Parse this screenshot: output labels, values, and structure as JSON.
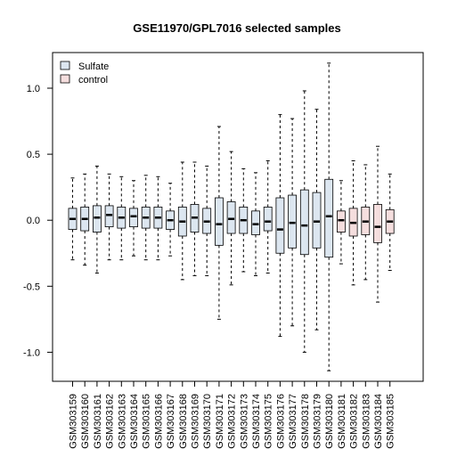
{
  "chart_data": {
    "type": "boxplot",
    "title": "GSE11970/GPL7016 selected samples",
    "xlabel": "",
    "ylabel": "",
    "ylim": [
      -1.22,
      1.27
    ],
    "yticks": [
      -1.0,
      -0.5,
      0.0,
      0.5,
      1.0
    ],
    "ytick_labels": [
      "-1.0",
      "-0.5",
      "0.0",
      "0.5",
      "1.0"
    ],
    "grid": false,
    "legend_position": "top-left",
    "legend": [
      {
        "name": "Sulfate",
        "color": "#dce6f0"
      },
      {
        "name": "control",
        "color": "#f5dede"
      }
    ],
    "categories": [
      "GSM303159",
      "GSM303160",
      "GSM303161",
      "GSM303162",
      "GSM303163",
      "GSM303164",
      "GSM303165",
      "GSM303166",
      "GSM303167",
      "GSM303168",
      "GSM303169",
      "GSM303170",
      "GSM303171",
      "GSM303172",
      "GSM303173",
      "GSM303174",
      "GSM303175",
      "GSM303176",
      "GSM303177",
      "GSM303178",
      "GSM303179",
      "GSM303180",
      "GSM303181",
      "GSM303182",
      "GSM303183",
      "GSM303184",
      "GSM303185"
    ],
    "series": [
      {
        "name": "Sulfate",
        "color": "#dce6f0",
        "boxes": [
          {
            "whisker_low": -0.3,
            "q1": -0.07,
            "median": 0.01,
            "q3": 0.09,
            "whisker_high": 0.32
          },
          {
            "whisker_low": -0.34,
            "q1": -0.08,
            "median": 0.01,
            "q3": 0.1,
            "whisker_high": 0.35
          },
          {
            "whisker_low": -0.4,
            "q1": -0.09,
            "median": 0.02,
            "q3": 0.11,
            "whisker_high": 0.41
          },
          {
            "whisker_low": -0.3,
            "q1": -0.05,
            "median": 0.04,
            "q3": 0.11,
            "whisker_high": 0.35
          },
          {
            "whisker_low": -0.3,
            "q1": -0.06,
            "median": 0.02,
            "q3": 0.1,
            "whisker_high": 0.33
          },
          {
            "whisker_low": -0.27,
            "q1": -0.05,
            "median": 0.03,
            "q3": 0.09,
            "whisker_high": 0.3
          },
          {
            "whisker_low": -0.3,
            "q1": -0.06,
            "median": 0.02,
            "q3": 0.1,
            "whisker_high": 0.34
          },
          {
            "whisker_low": -0.3,
            "q1": -0.06,
            "median": 0.02,
            "q3": 0.1,
            "whisker_high": 0.33
          },
          {
            "whisker_low": -0.27,
            "q1": -0.07,
            "median": 0.0,
            "q3": 0.07,
            "whisker_high": 0.28
          },
          {
            "whisker_low": -0.45,
            "q1": -0.12,
            "median": -0.01,
            "q3": 0.1,
            "whisker_high": 0.44
          },
          {
            "whisker_low": -0.42,
            "q1": -0.09,
            "median": 0.02,
            "q3": 0.12,
            "whisker_high": 0.44
          },
          {
            "whisker_low": -0.42,
            "q1": -0.1,
            "median": -0.01,
            "q3": 0.09,
            "whisker_high": 0.41
          },
          {
            "whisker_low": -0.75,
            "q1": -0.19,
            "median": -0.03,
            "q3": 0.17,
            "whisker_high": 0.71
          },
          {
            "whisker_low": -0.49,
            "q1": -0.1,
            "median": 0.01,
            "q3": 0.14,
            "whisker_high": 0.52
          },
          {
            "whisker_low": -0.39,
            "q1": -0.1,
            "median": 0.0,
            "q3": 0.1,
            "whisker_high": 0.39
          },
          {
            "whisker_low": -0.42,
            "q1": -0.11,
            "median": -0.03,
            "q3": 0.07,
            "whisker_high": 0.36
          },
          {
            "whisker_low": -0.4,
            "q1": -0.08,
            "median": -0.01,
            "q3": 0.1,
            "whisker_high": 0.45
          },
          {
            "whisker_low": -0.88,
            "q1": -0.25,
            "median": -0.07,
            "q3": 0.17,
            "whisker_high": 0.8
          },
          {
            "whisker_low": -0.8,
            "q1": -0.21,
            "median": -0.02,
            "q3": 0.19,
            "whisker_high": 0.77
          },
          {
            "whisker_low": -1.0,
            "q1": -0.26,
            "median": -0.04,
            "q3": 0.23,
            "whisker_high": 0.98
          },
          {
            "whisker_low": -0.83,
            "q1": -0.21,
            "median": -0.01,
            "q3": 0.21,
            "whisker_high": 0.84
          },
          {
            "whisker_low": -1.14,
            "q1": -0.28,
            "median": 0.03,
            "q3": 0.31,
            "whisker_high": 1.19
          }
        ]
      },
      {
        "name": "control",
        "color": "#f5dede",
        "boxes": [
          {
            "whisker_low": -0.33,
            "q1": -0.09,
            "median": 0.0,
            "q3": 0.07,
            "whisker_high": 0.3
          },
          {
            "whisker_low": -0.49,
            "q1": -0.12,
            "median": -0.02,
            "q3": 0.09,
            "whisker_high": 0.45
          },
          {
            "whisker_low": -0.45,
            "q1": -0.11,
            "median": -0.01,
            "q3": 0.1,
            "whisker_high": 0.42
          },
          {
            "whisker_low": -0.62,
            "q1": -0.17,
            "median": -0.05,
            "q3": 0.12,
            "whisker_high": 0.56
          },
          {
            "whisker_low": -0.38,
            "q1": -0.1,
            "median": -0.01,
            "q3": 0.08,
            "whisker_high": 0.35
          }
        ]
      }
    ]
  }
}
